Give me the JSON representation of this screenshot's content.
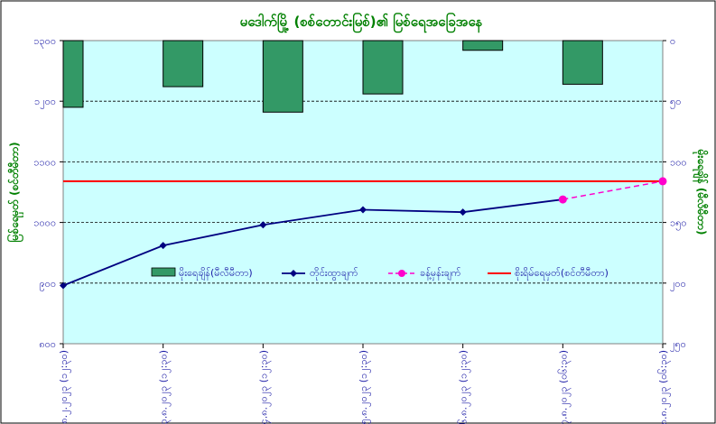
{
  "chart_data": {
    "type": "bar+line",
    "title": "မဒေါက်မြို့ (စစ်တောင်းမြစ်)၏ မြစ်ရေအခြေအနေ",
    "ylabel_left": "မြစ်ရေမှတ် (စင်တီမီတာ)",
    "ylabel_right": "မိုးရေချိန် (မီလီမီတာ)",
    "categories": [
      "၂၈.၂.၂၀၂၃ (၁၂:၃၀)",
      "၃.၈.၂၀၂၃ (၁၂:၃၀)",
      "၄.၈.၂၀၂၃ (၁၂:၃၀)",
      "၅.၈.၂၀၂၃ (၁၂:၃၀)",
      "၆.၈.၂၀၂၃ (၁၂:၃၀)",
      "၇.၈.၂၀၂၃ (၀၆:၃၀)",
      "၈.၈.၂၀၂၃ (၀၆:၃၀)"
    ],
    "left_axis": {
      "min": 800,
      "max": 1300,
      "ticks": [
        800,
        900,
        1000,
        1100,
        1200,
        1300
      ],
      "tick_labels": [
        "၈၀၀",
        "၉၀၀",
        "၁၀၀၀",
        "၁၁၀၀",
        "၁၂၀၀",
        "၁၃၀၀"
      ]
    },
    "right_axis": {
      "min": 0,
      "max": 250,
      "reversed": true,
      "ticks": [
        0,
        50,
        100,
        150,
        200,
        250
      ],
      "tick_labels": [
        "၀",
        "၅၀",
        "၁၀၀",
        "၁၅၀",
        "၂၀၀",
        "၂၅၀"
      ]
    },
    "series": [
      {
        "name": "မိုးရေချိန်(မီလီမီတာ)",
        "kind": "bar",
        "axis": "right",
        "color": "#339966",
        "values": [
          55,
          38,
          59,
          44,
          8,
          36,
          null
        ]
      },
      {
        "name": "တိုင်းထွာချက်",
        "kind": "line",
        "axis": "left",
        "color": "#000080",
        "marker": "diamond",
        "values": [
          896,
          962,
          996,
          1021,
          1017,
          1038,
          null
        ]
      },
      {
        "name": "ခန့်မှန်းချက်",
        "kind": "line",
        "axis": "left",
        "color": "#ff00cc",
        "marker": "circle",
        "dash": true,
        "values": [
          null,
          null,
          null,
          null,
          null,
          1038,
          1068
        ]
      },
      {
        "name": "စိုးရိမ်ရေမှတ်(စင်တီမီတာ)",
        "kind": "hline",
        "axis": "left",
        "color": "#ff0000",
        "value": 1068
      }
    ],
    "grid": {
      "horizontal": true,
      "style": "dashed"
    },
    "legend_placement": "bottom-center inside plot"
  }
}
